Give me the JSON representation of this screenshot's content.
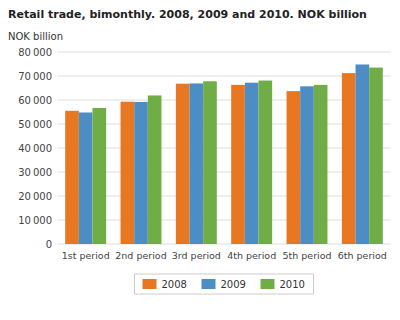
{
  "chart_data": {
    "type": "bar",
    "title": "Retail trade, bimonthly. 2008, 2009 and 2010. NOK billion",
    "y_label": "NOK billion",
    "categories": [
      "1st period",
      "2nd period",
      "3rd period",
      "4th period",
      "5th period",
      "6th period"
    ],
    "series": [
      {
        "name": "2008",
        "color": "#E87722",
        "values": [
          55500,
          59300,
          66800,
          66300,
          63700,
          71200
        ]
      },
      {
        "name": "2009",
        "color": "#4C8EC4",
        "values": [
          54800,
          59200,
          66900,
          67200,
          65700,
          74800
        ]
      },
      {
        "name": "2010",
        "color": "#70AD47",
        "values": [
          56700,
          61900,
          67800,
          68100,
          66300,
          73500
        ]
      }
    ],
    "ylim": [
      0,
      80000
    ],
    "yticks": [
      0,
      {
        "value": 10000,
        "label": "10 000"
      },
      {
        "value": 20000,
        "label": "20 000"
      },
      {
        "value": 30000,
        "label": "30 000"
      },
      {
        "value": 40000,
        "label": "40 000"
      },
      {
        "value": 50000,
        "label": "50 000"
      },
      {
        "value": 60000,
        "label": "60 000"
      },
      {
        "value": 70000,
        "label": "70 000"
      },
      {
        "value": 80000,
        "label": "80 000"
      }
    ],
    "grid": true,
    "legend": "bottom"
  }
}
